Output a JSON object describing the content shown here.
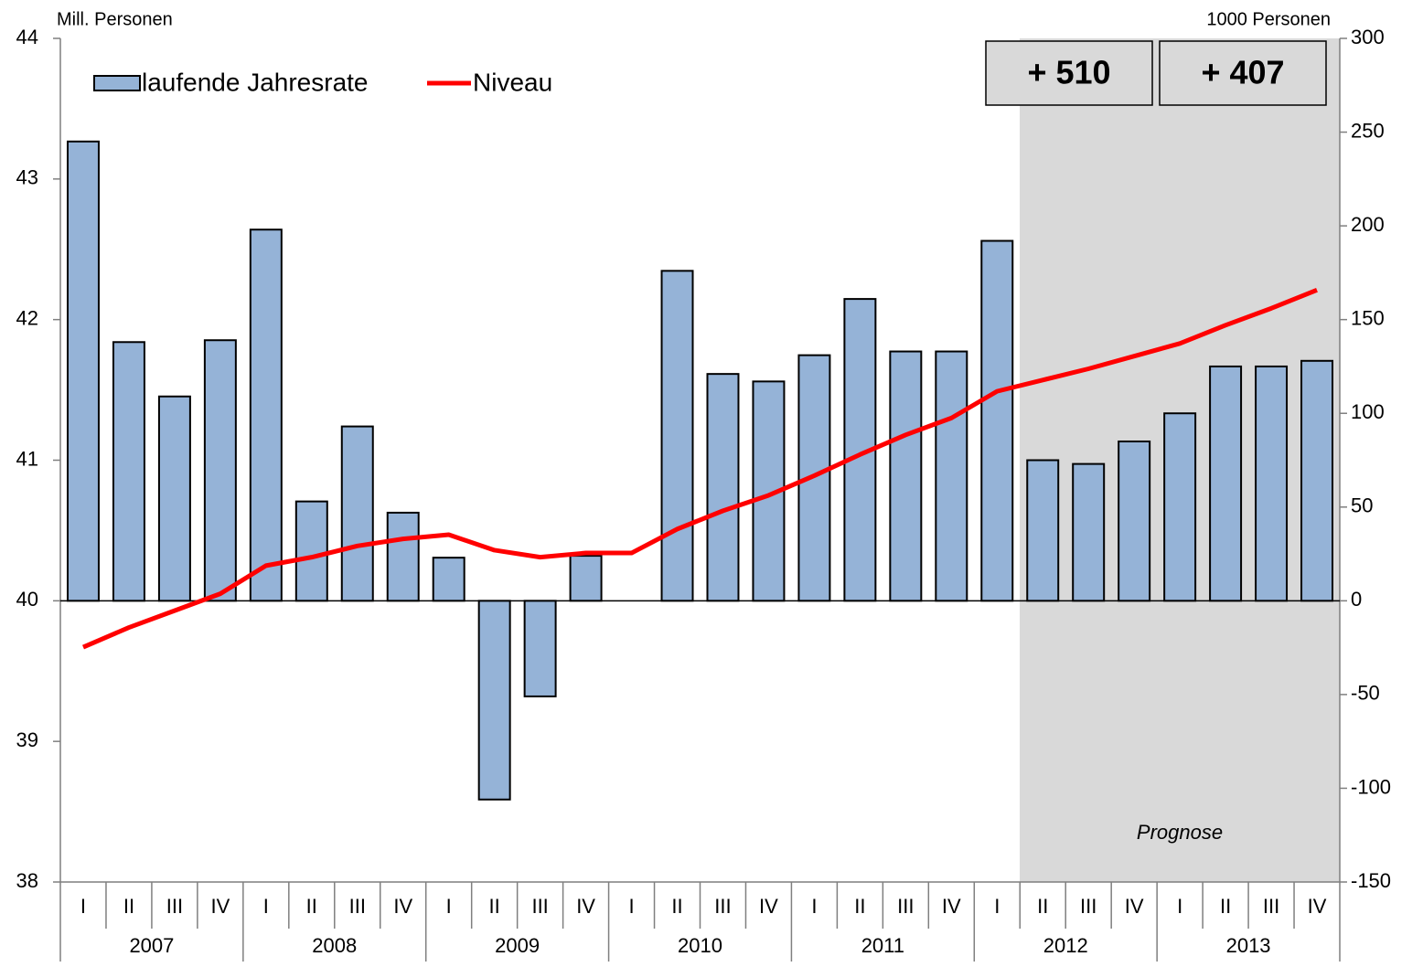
{
  "chart_data": {
    "type": "bar_line",
    "y_label": "Mill. Personen",
    "y2_label": "1000 Personen",
    "ylim": [
      38,
      44
    ],
    "yticks": [
      38,
      39,
      40,
      41,
      42,
      43,
      44
    ],
    "y2lim": [
      -150,
      300
    ],
    "y2ticks": [
      -150,
      -100,
      -50,
      0,
      50,
      100,
      150,
      200,
      250,
      300
    ],
    "categories": [
      "I",
      "II",
      "III",
      "IV",
      "I",
      "II",
      "III",
      "IV",
      "I",
      "II",
      "III",
      "IV",
      "I",
      "II",
      "III",
      "IV",
      "I",
      "II",
      "III",
      "IV",
      "I",
      "II",
      "III",
      "IV",
      "I",
      "II",
      "III",
      "IV"
    ],
    "years": [
      "2007",
      "2008",
      "2009",
      "2010",
      "2011",
      "2012",
      "2013"
    ],
    "series": [
      {
        "name": "laufende Jahresrate",
        "color": "#95b3d7",
        "axis": "y2",
        "values": [
          245,
          138,
          109,
          139,
          198,
          53,
          93,
          47,
          23,
          -106,
          -51,
          24,
          null,
          176,
          121,
          117,
          131,
          161,
          133,
          133,
          192,
          75,
          73,
          85,
          100,
          125,
          125,
          128
        ]
      },
      {
        "name": "Niveau",
        "color": "#ff0000",
        "values": [
          39.67,
          39.81,
          39.93,
          40.05,
          40.25,
          40.31,
          40.39,
          40.44,
          40.47,
          40.36,
          40.31,
          40.34,
          40.34,
          40.51,
          40.64,
          40.75,
          40.89,
          41.04,
          41.18,
          41.3,
          41.49,
          41.57,
          41.65,
          41.74,
          41.83,
          41.96,
          42.08,
          42.21
        ]
      }
    ],
    "annotations": [
      "+ 510",
      "+ 407"
    ],
    "forecast_label": "Prognose"
  }
}
